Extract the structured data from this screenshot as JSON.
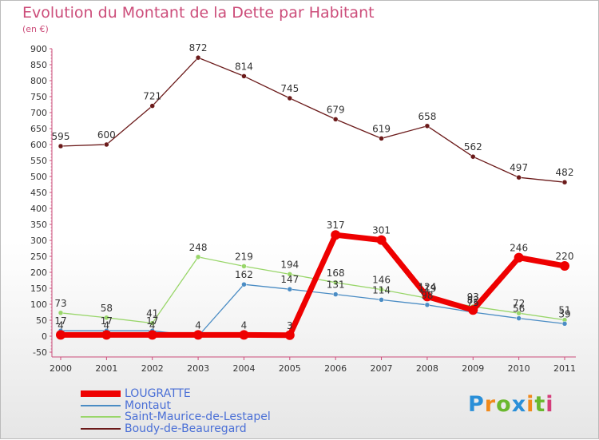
{
  "header": {
    "title": "Evolution du Montant de la Dette par Habitant",
    "unit": "(en €)"
  },
  "logo": {
    "text": "Proxiti",
    "letters": [
      {
        "ch": "P",
        "color": "#2a8fd8"
      },
      {
        "ch": "r",
        "color": "#f08a1c"
      },
      {
        "ch": "o",
        "color": "#6ab82e"
      },
      {
        "ch": "x",
        "color": "#2a8fd8"
      },
      {
        "ch": "i",
        "color": "#f08a1c"
      },
      {
        "ch": "t",
        "color": "#6ab82e"
      },
      {
        "ch": "i",
        "color": "#d43d7a"
      }
    ]
  },
  "chart_data": {
    "type": "line",
    "title": "Evolution du Montant de la Dette par Habitant",
    "ylabel": "(en €)",
    "x": [
      "2000",
      "2001",
      "2002",
      "2003",
      "2004",
      "2005",
      "2006",
      "2007",
      "2008",
      "2009",
      "2010",
      "2011"
    ],
    "ylim": [
      -50,
      900
    ],
    "yticks": [
      -50,
      0,
      50,
      100,
      150,
      200,
      250,
      300,
      350,
      400,
      450,
      500,
      550,
      600,
      650,
      700,
      750,
      800,
      850,
      900
    ],
    "grid": false,
    "legend_position": "bottom-left",
    "series": [
      {
        "name": "LOUGRATTE",
        "color": "#ee0000",
        "values": [
          4,
          4,
          4,
          4,
          4,
          3,
          317,
          301,
          124,
          82,
          246,
          220
        ]
      },
      {
        "name": "Montaut",
        "color": "#4a8cc4",
        "values": [
          17,
          17,
          17,
          0,
          162,
          147,
          131,
          114,
          98,
          75,
          56,
          39
        ]
      },
      {
        "name": "Saint-Maurice-de-Lestapel",
        "color": "#99d66a",
        "values": [
          73,
          58,
          41,
          248,
          219,
          194,
          168,
          146,
          119,
          93,
          72,
          51
        ]
      },
      {
        "name": "Boudy-de-Beauregard",
        "color": "#6b1a1a",
        "values": [
          595,
          600,
          721,
          872,
          814,
          745,
          679,
          619,
          658,
          562,
          497,
          482
        ]
      }
    ],
    "data_labels": [
      [
        "4",
        "4",
        "4",
        "4",
        "4",
        "3",
        "317",
        "301",
        "124",
        "82",
        "246",
        "220"
      ],
      [
        "17",
        "17",
        "17",
        "",
        "162",
        "147",
        "131",
        "114",
        "98",
        "75",
        "56",
        "39"
      ],
      [
        "73",
        "58",
        "41",
        "248",
        "219",
        "194",
        "168",
        "146",
        "119",
        "93",
        "72",
        "51"
      ],
      [
        "595",
        "600",
        "721",
        "872",
        "814",
        "745",
        "679",
        "619",
        "658",
        "562",
        "497",
        "482"
      ]
    ]
  }
}
